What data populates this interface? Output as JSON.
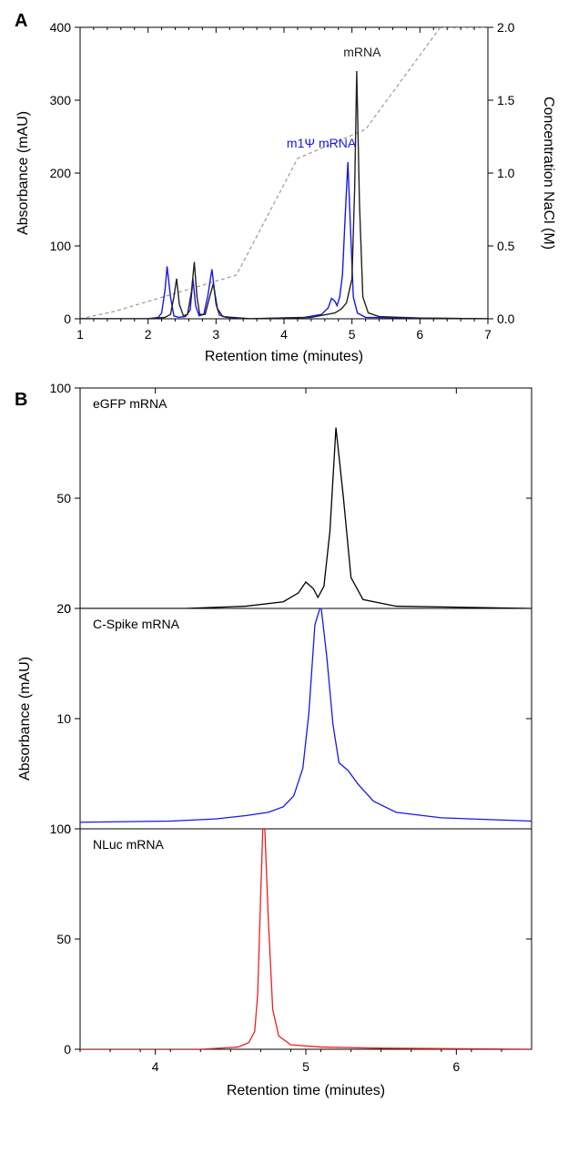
{
  "panelA": {
    "label": "A",
    "type": "line",
    "xlabel": "Retention time (minutes)",
    "ylabel_left": "Absorbance (mAU)",
    "ylabel_right": "Concentration NaCl (M)",
    "xlim": [
      1,
      7
    ],
    "ylim_left": [
      0,
      400
    ],
    "ylim_right": [
      0.0,
      2.0
    ],
    "xticks": [
      1,
      2,
      3,
      4,
      5,
      6,
      7
    ],
    "yticks_left": [
      0,
      100,
      200,
      300,
      400
    ],
    "yticks_right": [
      0.0,
      0.5,
      1.0,
      1.5,
      2.0
    ],
    "background_color": "#ffffff",
    "axis_color": "#000000",
    "series": [
      {
        "name": "gradient",
        "color": "#999999",
        "dash": "4,3",
        "width": 1.2,
        "axis": "right",
        "points": [
          [
            1.0,
            0.0
          ],
          [
            1.5,
            0.05
          ],
          [
            3.3,
            0.3
          ],
          [
            4.2,
            1.1
          ],
          [
            5.2,
            1.3
          ],
          [
            6.3,
            2.0
          ],
          [
            7.0,
            2.0
          ]
        ]
      },
      {
        "name": "m1Psi-mRNA",
        "label": "m1Ψ mRNA",
        "label_pos": [
          4.55,
          235
        ],
        "color": "#1818e8",
        "width": 1.4,
        "axis": "left",
        "points": [
          [
            1.0,
            0
          ],
          [
            2.0,
            0
          ],
          [
            2.15,
            2
          ],
          [
            2.2,
            8
          ],
          [
            2.25,
            40
          ],
          [
            2.28,
            72
          ],
          [
            2.33,
            30
          ],
          [
            2.38,
            4
          ],
          [
            2.45,
            2
          ],
          [
            2.55,
            3
          ],
          [
            2.62,
            12
          ],
          [
            2.66,
            55
          ],
          [
            2.7,
            18
          ],
          [
            2.75,
            4
          ],
          [
            2.82,
            6
          ],
          [
            2.88,
            32
          ],
          [
            2.94,
            68
          ],
          [
            3.0,
            20
          ],
          [
            3.05,
            5
          ],
          [
            3.15,
            2
          ],
          [
            3.5,
            0
          ],
          [
            4.3,
            2
          ],
          [
            4.55,
            6
          ],
          [
            4.65,
            15
          ],
          [
            4.7,
            28
          ],
          [
            4.75,
            24
          ],
          [
            4.78,
            18
          ],
          [
            4.82,
            30
          ],
          [
            4.86,
            60
          ],
          [
            4.9,
            140
          ],
          [
            4.94,
            215
          ],
          [
            4.98,
            120
          ],
          [
            5.02,
            30
          ],
          [
            5.08,
            8
          ],
          [
            5.2,
            2
          ],
          [
            6.0,
            1
          ],
          [
            7.0,
            0
          ]
        ]
      },
      {
        "name": "mRNA",
        "label": "mRNA",
        "label_pos": [
          5.15,
          360
        ],
        "color": "#222222",
        "width": 1.4,
        "axis": "left",
        "points": [
          [
            1.0,
            0
          ],
          [
            2.0,
            0
          ],
          [
            2.25,
            2
          ],
          [
            2.33,
            6
          ],
          [
            2.38,
            30
          ],
          [
            2.42,
            55
          ],
          [
            2.46,
            20
          ],
          [
            2.52,
            4
          ],
          [
            2.58,
            6
          ],
          [
            2.64,
            38
          ],
          [
            2.68,
            78
          ],
          [
            2.72,
            30
          ],
          [
            2.76,
            6
          ],
          [
            2.84,
            6
          ],
          [
            2.9,
            28
          ],
          [
            2.96,
            48
          ],
          [
            3.02,
            14
          ],
          [
            3.1,
            3
          ],
          [
            3.5,
            0
          ],
          [
            4.4,
            2
          ],
          [
            4.75,
            8
          ],
          [
            4.85,
            14
          ],
          [
            4.92,
            22
          ],
          [
            5.0,
            55
          ],
          [
            5.04,
            180
          ],
          [
            5.07,
            340
          ],
          [
            5.11,
            160
          ],
          [
            5.16,
            30
          ],
          [
            5.24,
            8
          ],
          [
            5.4,
            3
          ],
          [
            6.0,
            1
          ],
          [
            7.0,
            0
          ]
        ]
      }
    ]
  },
  "panelB": {
    "label": "B",
    "type": "stacked-line",
    "xlabel": "Retention time (minutes)",
    "ylabel": "Absorbance (mAU)",
    "xlim": [
      3.5,
      6.5
    ],
    "xticks": [
      4,
      5,
      6
    ],
    "background_color": "#ffffff",
    "axis_color": "#000000",
    "subplots": [
      {
        "title": "eGFP mRNA",
        "color": "#000000",
        "ylim": [
          0,
          100
        ],
        "yticks": [
          0,
          50,
          100
        ],
        "width": 1.3,
        "points": [
          [
            3.5,
            0
          ],
          [
            4.2,
            0
          ],
          [
            4.6,
            1
          ],
          [
            4.85,
            3
          ],
          [
            4.95,
            7
          ],
          [
            5.0,
            12
          ],
          [
            5.05,
            9
          ],
          [
            5.08,
            5
          ],
          [
            5.12,
            10
          ],
          [
            5.16,
            35
          ],
          [
            5.2,
            82
          ],
          [
            5.25,
            50
          ],
          [
            5.3,
            14
          ],
          [
            5.38,
            4
          ],
          [
            5.6,
            1
          ],
          [
            6.5,
            0
          ]
        ]
      },
      {
        "title": "C-Spike mRNA",
        "color": "#1818e8",
        "ylim": [
          0,
          20
        ],
        "yticks": [
          0,
          10,
          20
        ],
        "width": 1.3,
        "points": [
          [
            3.5,
            0.6
          ],
          [
            4.1,
            0.7
          ],
          [
            4.4,
            0.9
          ],
          [
            4.6,
            1.2
          ],
          [
            4.75,
            1.5
          ],
          [
            4.85,
            2.0
          ],
          [
            4.92,
            3.0
          ],
          [
            4.98,
            5.5
          ],
          [
            5.02,
            10.5
          ],
          [
            5.06,
            18.5
          ],
          [
            5.1,
            20.3
          ],
          [
            5.14,
            15.5
          ],
          [
            5.18,
            9.5
          ],
          [
            5.22,
            6.0
          ],
          [
            5.28,
            5.3
          ],
          [
            5.35,
            4.0
          ],
          [
            5.45,
            2.5
          ],
          [
            5.6,
            1.5
          ],
          [
            5.9,
            1.0
          ],
          [
            6.5,
            0.7
          ]
        ]
      },
      {
        "title": "NLuc mRNA",
        "color": "#e82020",
        "ylim": [
          0,
          100
        ],
        "yticks": [
          0,
          50,
          100
        ],
        "width": 1.3,
        "points": [
          [
            3.5,
            0
          ],
          [
            4.3,
            0
          ],
          [
            4.55,
            1
          ],
          [
            4.62,
            3
          ],
          [
            4.66,
            8
          ],
          [
            4.68,
            25
          ],
          [
            4.7,
            70
          ],
          [
            4.72,
            113
          ],
          [
            4.75,
            60
          ],
          [
            4.78,
            18
          ],
          [
            4.82,
            6
          ],
          [
            4.9,
            2
          ],
          [
            5.1,
            1
          ],
          [
            5.5,
            0.5
          ],
          [
            6.5,
            0
          ]
        ]
      }
    ]
  }
}
